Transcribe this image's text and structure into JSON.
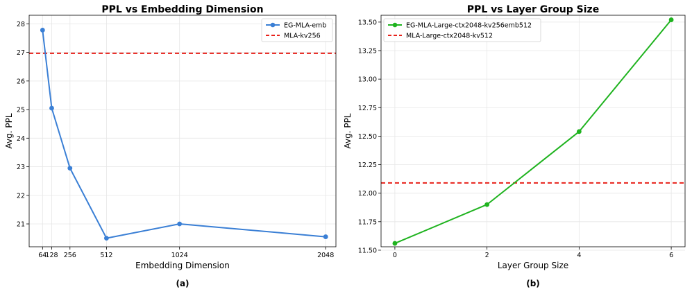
{
  "chart_data": [
    {
      "type": "line",
      "title": "PPL vs Embedding Dimension",
      "xlabel": "Embedding Dimension",
      "ylabel": "Avg. PPL",
      "caption": "(a)",
      "xlim": [
        -30,
        2120
      ],
      "ylim": [
        20.2,
        28.3
      ],
      "xticks": [
        64,
        128,
        256,
        512,
        1024,
        2048
      ],
      "xtick_labels": [
        "64",
        "128",
        "256",
        "512",
        "1024",
        "2048"
      ],
      "yticks": [
        21,
        22,
        23,
        24,
        25,
        26,
        27,
        28
      ],
      "ytick_labels": [
        "21",
        "22",
        "23",
        "24",
        "25",
        "26",
        "27",
        "28"
      ],
      "grid": true,
      "legend_position": "top-right",
      "series": [
        {
          "name": "EG-MLA-emb",
          "style": "solid-marker",
          "color": "#3a7fd5",
          "x": [
            64,
            128,
            256,
            512,
            1024,
            2048
          ],
          "y": [
            27.78,
            25.05,
            22.95,
            20.5,
            21.0,
            20.55
          ]
        }
      ],
      "hlines": [
        {
          "name": "MLA-kv256",
          "y": 26.97,
          "color": "#e8211a",
          "style": "dashed"
        }
      ]
    },
    {
      "type": "line",
      "title": "PPL vs Layer Group Size",
      "xlabel": "Layer Group Size",
      "ylabel": "Avg. PPL",
      "caption": "(b)",
      "xlim": [
        -0.3,
        6.3
      ],
      "ylim": [
        11.53,
        13.56
      ],
      "xticks": [
        0,
        2,
        4,
        6
      ],
      "xtick_labels": [
        "0",
        "2",
        "4",
        "6"
      ],
      "yticks": [
        11.5,
        11.75,
        12.0,
        12.25,
        12.5,
        12.75,
        13.0,
        13.25,
        13.5
      ],
      "ytick_labels": [
        "11.50",
        "11.75",
        "12.00",
        "12.25",
        "12.50",
        "12.75",
        "13.00",
        "13.25",
        "13.50"
      ],
      "grid": true,
      "legend_position": "top-left",
      "series": [
        {
          "name": "EG-MLA-Large-ctx2048-kv256emb512",
          "style": "solid-marker",
          "color": "#1fb31f",
          "x": [
            0,
            2,
            4,
            6
          ],
          "y": [
            11.56,
            11.9,
            12.54,
            13.52
          ]
        }
      ],
      "hlines": [
        {
          "name": "MLA-Large-ctx2048-kv512",
          "y": 12.09,
          "color": "#e8211a",
          "style": "dashed"
        }
      ]
    }
  ]
}
